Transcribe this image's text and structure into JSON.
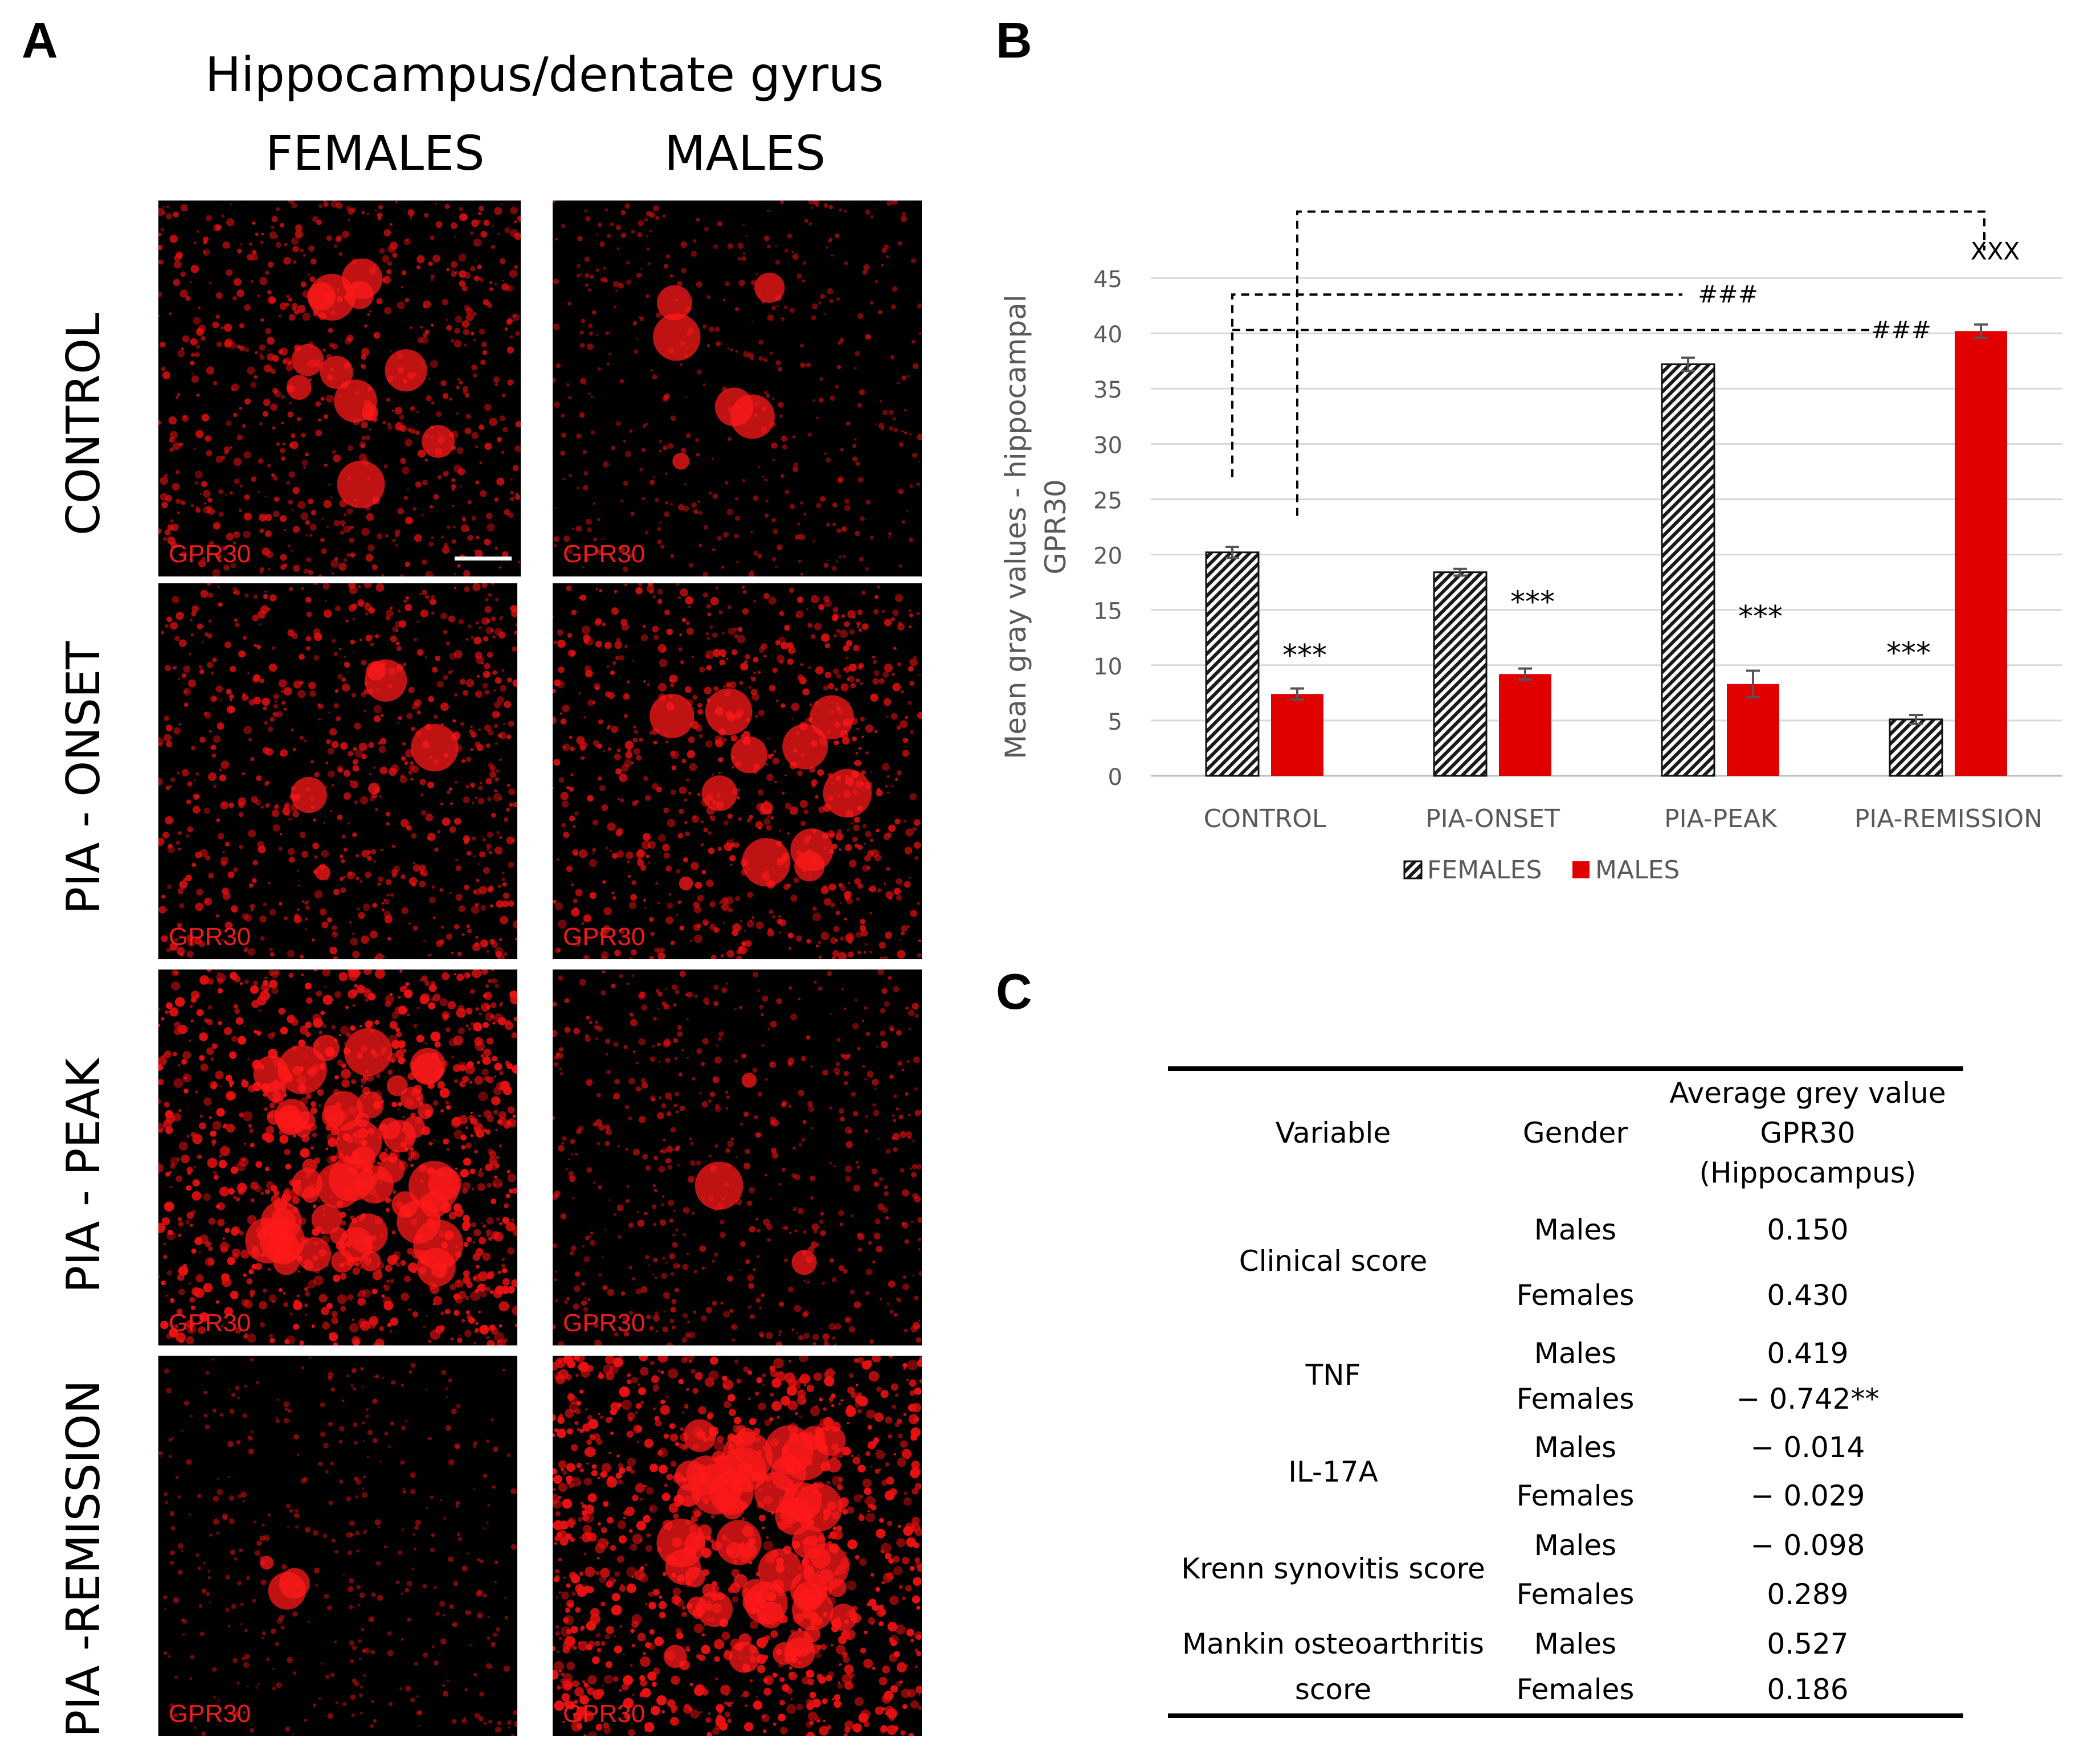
{
  "panel_a": {
    "letter": "A",
    "title": "Hippocampus/dentate gyrus",
    "col_females": "FEMALES",
    "col_males": "MALES",
    "rows": [
      "CONTROL",
      "PIA - ONSET",
      "PIA - PEAK",
      "PIA -REMISSION"
    ],
    "image_label": "GPR30"
  },
  "panel_b": {
    "letter": "B"
  },
  "panel_c": {
    "letter": "C",
    "headers": {
      "variable": "Variable",
      "gender": "Gender",
      "value_line1": "Average grey value",
      "value_line2": "GPR30",
      "value_line3": "(Hippocampus)"
    },
    "rows": [
      {
        "variable": "Clinical score",
        "gender": "Males",
        "value": "0.150"
      },
      {
        "variable": "",
        "gender": "Females",
        "value": "0.430"
      },
      {
        "variable": "TNF",
        "gender": "Males",
        "value": "0.419"
      },
      {
        "variable": "",
        "gender": "Females",
        "value": "− 0.742**"
      },
      {
        "variable": "IL-17A",
        "gender": "Males",
        "value": "− 0.014"
      },
      {
        "variable": "",
        "gender": "Females",
        "value": "− 0.029"
      },
      {
        "variable": "Krenn synovitis score",
        "gender": "Males",
        "value": "− 0.098"
      },
      {
        "variable": "",
        "gender": "Females",
        "value": "0.289"
      },
      {
        "variable": "Mankin osteoarthritis",
        "gender": "Males",
        "value": "0.527"
      },
      {
        "variable": "score",
        "gender": "Females",
        "value": "0.186"
      }
    ]
  },
  "chart_data": {
    "type": "bar",
    "categories": [
      "CONTROL",
      "PIA-ONSET",
      "PIA-PEAK",
      "PIA-REMISSION"
    ],
    "series": [
      {
        "name": "FEMALES",
        "values": [
          20.2,
          18.4,
          37.2,
          5.1
        ],
        "errors": [
          0.5,
          0.3,
          0.6,
          0.4
        ],
        "pattern": "diagonal-hatch"
      },
      {
        "name": "MALES",
        "values": [
          7.4,
          9.2,
          8.3,
          40.2
        ],
        "errors": [
          0.5,
          0.5,
          1.2,
          0.6
        ],
        "color": "#e00000"
      }
    ],
    "ylabel_line1": "Mean gray values - hippocampal",
    "ylabel_line2": "GPR30",
    "ylim": [
      0,
      45
    ],
    "yticks": [
      0,
      5,
      10,
      15,
      20,
      25,
      30,
      35,
      40,
      45
    ],
    "grid": true,
    "legend": "bottom",
    "annotations": {
      "sig_within": "***",
      "hash1": "###",
      "hash2": "###",
      "xxx": "XXX"
    }
  }
}
